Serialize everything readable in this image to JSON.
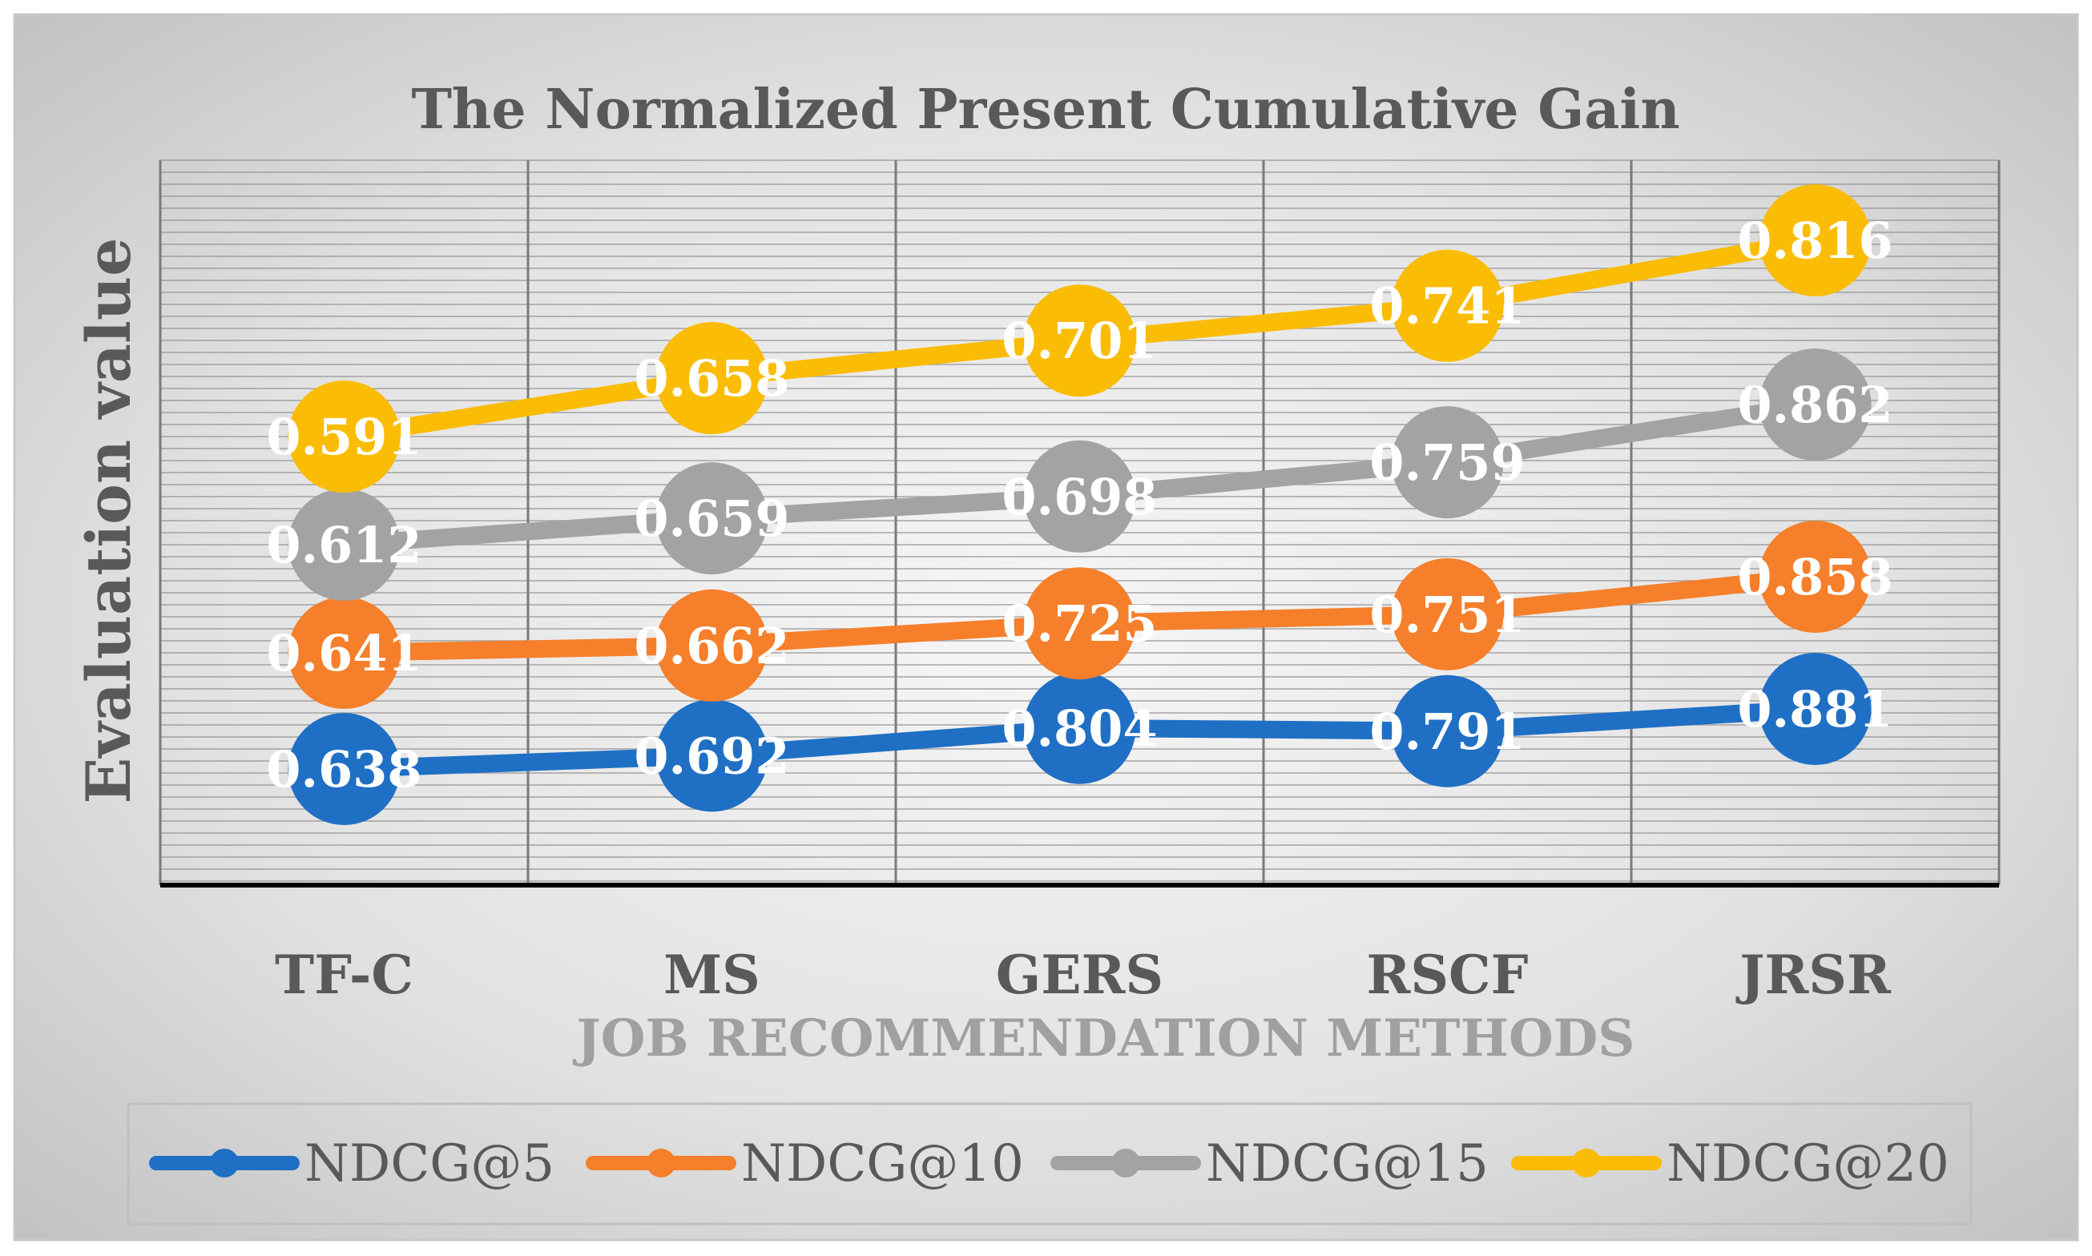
{
  "chart_data": {
    "type": "line",
    "title": "The Normalized Present Cumulative Gain",
    "xlabel": "JOB RECOMMENDATION METHODS",
    "ylabel": "Evaluation value",
    "categories": [
      "TF-C",
      "MS",
      "GERS",
      "RSCF",
      "JRSR"
    ],
    "grid": true,
    "legend_position": "bottom",
    "series": [
      {
        "name": "NDCG@5",
        "color": "#1f6fc5",
        "values": [
          0.638,
          0.692,
          0.804,
          0.791,
          0.881
        ]
      },
      {
        "name": "NDCG@10",
        "color": "#f57f2a",
        "values": [
          0.641,
          0.662,
          0.725,
          0.751,
          0.858
        ]
      },
      {
        "name": "NDCG@15",
        "color": "#a3a3a3",
        "values": [
          0.612,
          0.659,
          0.698,
          0.759,
          0.862
        ]
      },
      {
        "name": "NDCG@20",
        "color": "#fbbc05",
        "values": [
          0.591,
          0.658,
          0.701,
          0.741,
          0.816
        ]
      }
    ]
  }
}
